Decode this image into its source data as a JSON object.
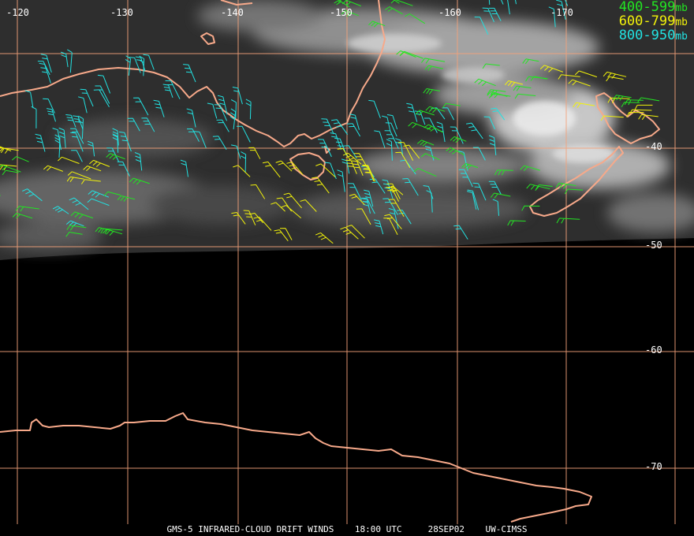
{
  "map": {
    "longitude_labels": [
      "-120",
      "-130",
      "-140",
      "-150",
      "-160",
      "-170"
    ],
    "latitude_labels": [
      "-40",
      "-50",
      "-60",
      "-70"
    ],
    "colors": {
      "grid": "#f4a27a",
      "coast": "#f7a98a",
      "label": "#ffffff",
      "band_400": "#22e522",
      "band_600": "#f2f20a",
      "band_800": "#22e2e2"
    }
  },
  "legend": [
    {
      "range": "400-599",
      "unit": "mb",
      "color": "#22e522"
    },
    {
      "range": "600-799",
      "unit": "mb",
      "color": "#f2f20a"
    },
    {
      "range": "800-950",
      "unit": "mb",
      "color": "#22e2e2"
    }
  ],
  "footer": {
    "product": "GMS-5 INFRARED-CLOUD DRIFT WINDS",
    "time": "18:00 UTC",
    "date": "28SEP02",
    "credit": "UW-CIMSS"
  }
}
